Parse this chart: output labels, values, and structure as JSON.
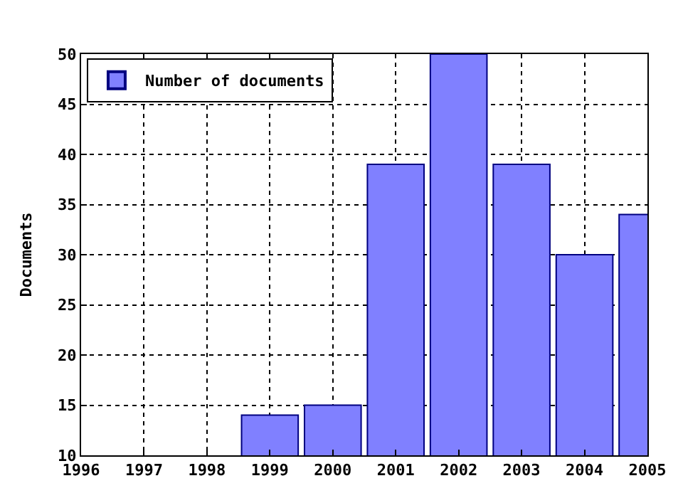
{
  "chart_data": {
    "type": "bar",
    "ylabel": "Documents",
    "x": [
      1999,
      2000,
      2001,
      2002,
      2003,
      2004,
      2005
    ],
    "series": [
      {
        "name": "Number of documents",
        "color": "#8080ff",
        "values": [
          14,
          15,
          39,
          50,
          39,
          30,
          34
        ]
      }
    ],
    "xlim": [
      1996,
      2005
    ],
    "xticks": [
      1996,
      1997,
      1998,
      1999,
      2000,
      2001,
      2002,
      2003,
      2004,
      2005
    ],
    "ylim": [
      10,
      50
    ],
    "yticks": [
      10,
      15,
      20,
      25,
      30,
      35,
      40,
      45,
      50
    ],
    "grid": true,
    "legend": "top left"
  }
}
